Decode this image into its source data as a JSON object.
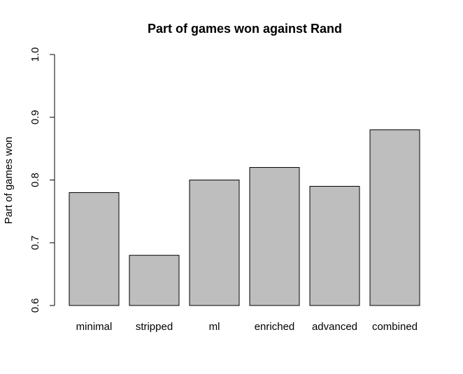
{
  "chart_data": {
    "type": "bar",
    "title": "Part of games won against  Rand",
    "xlabel": "",
    "ylabel": "Part of games won",
    "categories": [
      "minimal",
      "stripped",
      "ml",
      "enriched",
      "advanced",
      "combined"
    ],
    "values": [
      0.78,
      0.68,
      0.8,
      0.82,
      0.79,
      0.88
    ],
    "ylim": [
      0.6,
      1.0
    ],
    "yticks": [
      0.6,
      0.7,
      0.8,
      0.9,
      1.0
    ],
    "ytick_labels": [
      "0.6",
      "0.7",
      "0.8",
      "0.9",
      "1.0"
    ],
    "bar_color": "#bebebe",
    "grid": false,
    "legend": "none"
  }
}
